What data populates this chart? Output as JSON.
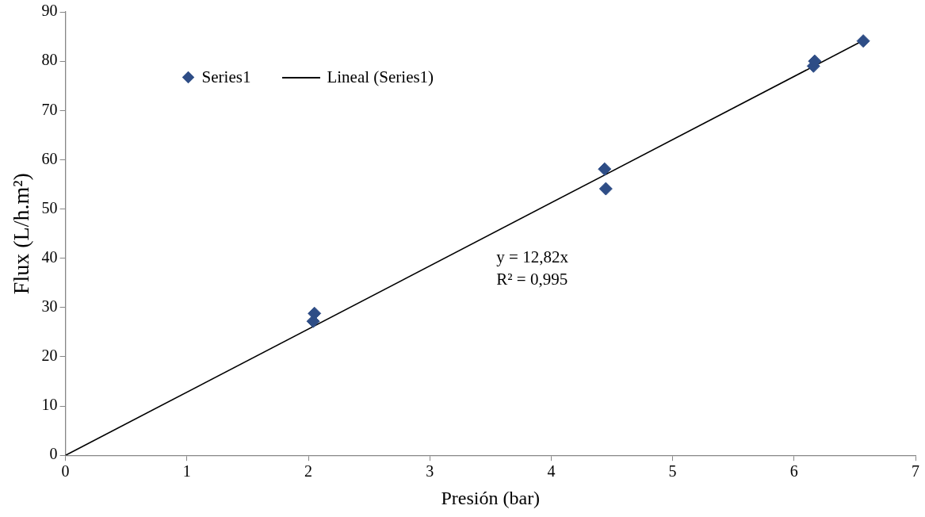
{
  "chart_data": {
    "type": "scatter",
    "xlabel": "Presión (bar)",
    "ylabel": "Flux (L/h.m²)",
    "xlim": [
      0,
      7
    ],
    "xticks": [
      0,
      1,
      2,
      3,
      4,
      5,
      6,
      7
    ],
    "ylim": [
      0,
      90
    ],
    "yticks": [
      0,
      10,
      20,
      30,
      40,
      50,
      60,
      70,
      80,
      90
    ],
    "grid": false,
    "legend": "top left",
    "marker": "diamond",
    "series": [
      {
        "name": "Series1",
        "color": "#2e4d86",
        "x": [
          2.04,
          2.05,
          4.44,
          4.45,
          6.16,
          6.17,
          6.57
        ],
        "values": [
          27.2,
          28.8,
          58.1,
          54.1,
          79,
          80,
          84.1
        ]
      },
      {
        "name": "Lineal (Series1)",
        "type": "line",
        "color": "#000000",
        "x": [
          0,
          6.57
        ],
        "values": [
          0,
          84.2
        ],
        "marker": "none",
        "line_style": "solid"
      }
    ],
    "annotations": [
      "y = 12,82x",
      "R² = 0,995"
    ]
  }
}
